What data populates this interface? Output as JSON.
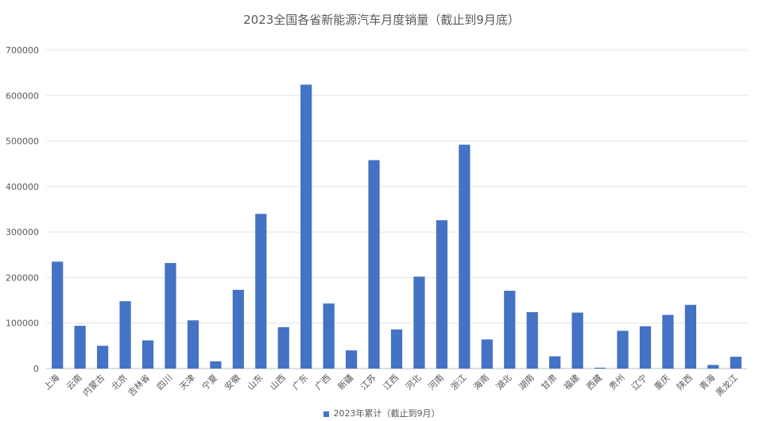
{
  "chart_data": {
    "type": "bar",
    "title": "2023全国各省新能源汽车月度销量（截止到9月底）",
    "xlabel": "",
    "ylabel": "",
    "ylim": [
      0,
      700000
    ],
    "yticks": [
      "0",
      "100000",
      "200000",
      "300000",
      "400000",
      "500000",
      "600000",
      "700000"
    ],
    "grid": true,
    "legend_position": "bottom",
    "color": "#4472C4",
    "categories": [
      "上海",
      "云南",
      "内蒙古",
      "北京",
      "吉林省",
      "四川",
      "天津",
      "宁夏",
      "安徽",
      "山东",
      "山西",
      "广东",
      "广西",
      "新疆",
      "江苏",
      "江西",
      "河北",
      "河南",
      "浙江",
      "海南",
      "湖北",
      "湖南",
      "甘肃",
      "福建",
      "西藏",
      "贵州",
      "辽宁",
      "重庆",
      "陕西",
      "青海",
      "黑龙江"
    ],
    "series": [
      {
        "name": "2023年累计（截止到9月）",
        "values": [
          235000,
          94000,
          50000,
          148000,
          62000,
          232000,
          106000,
          16000,
          173000,
          340000,
          91000,
          624000,
          143000,
          40000,
          458000,
          86000,
          202000,
          326000,
          492000,
          64000,
          171000,
          124000,
          27000,
          123000,
          2000,
          83000,
          93000,
          118000,
          140000,
          8000,
          26000
        ]
      }
    ]
  }
}
